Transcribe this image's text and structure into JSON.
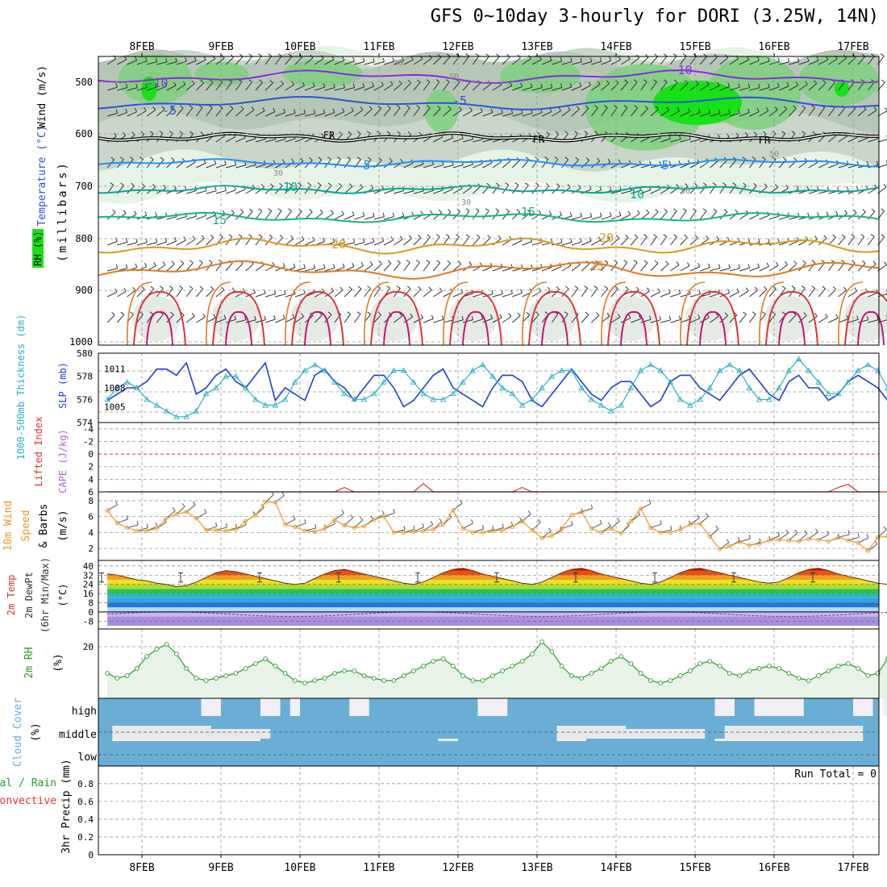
{
  "title": "GFS 0~10day 3-hourly for DORI (3.25W, 14N)",
  "days": [
    "8FEB",
    "9FEB",
    "10FEB",
    "11FEB",
    "12FEB",
    "13FEB",
    "14FEB",
    "15FEB",
    "16FEB",
    "17FEB"
  ],
  "run_total": "Run Total = 0",
  "colors": {
    "rh_light": "#e8f3e8",
    "rh_mid": "#c9d6c9",
    "rh_dark": "#7fd07f",
    "rh_bright": "#16e216",
    "temp_neg10": "#8a2be2",
    "temp_neg5": "#2a55d8",
    "temp_fr": "#000000",
    "temp_5": "#1e90ff",
    "temp_10": "#00a896",
    "temp_15": "#12b48a",
    "temp_20": "#d99a1a",
    "temp_25": "#e07a1a",
    "temp_30": "#dd3333",
    "temp_35": "#cc1177",
    "slp": "#1f3fcf",
    "thickness": "#2ab0c8",
    "lifted": "#dd3333",
    "wind10": "#e89a2a",
    "rh2m": "#2a9a2a",
    "cloud": "#6aaed6"
  },
  "panels": {
    "upper": {
      "ylabel_wind": "Wind (m/s)",
      "ylabel_temp": "Temperature (°C)",
      "ylabel_rh": "RH (%)",
      "ylabel_p": "(millibars)",
      "yticks": [
        "500",
        "600",
        "700",
        "800",
        "900",
        "1000"
      ],
      "contour_labels": [
        "-10",
        "-5",
        "FR",
        "-5",
        "-10",
        "FR",
        "FR",
        "5",
        "5",
        "10",
        "10",
        "15",
        "15",
        "20",
        "20",
        "25",
        "50",
        "50",
        "30",
        "30",
        "30",
        "50"
      ]
    },
    "slp": {
      "ylabel_left": "1000-500mb Thickness (dm)",
      "ylabel_right": "SLP (mb)",
      "yticks_left": [
        "580",
        "578",
        "576",
        "574"
      ],
      "yticks_right": [
        "1011",
        "1008",
        "1005"
      ]
    },
    "lifted": {
      "ylabel_1": "Lifted Index",
      "ylabel_2": "CAPE (J/kg)",
      "yticks": [
        "-4",
        "-2",
        "0",
        "2",
        "4",
        "6"
      ]
    },
    "wind": {
      "ylabel_1": "10m Wind",
      "ylabel_2": "Speed",
      "ylabel_3": "& Barbs",
      "ylabel_4": "(m/s)",
      "yticks": [
        "8",
        "6",
        "4",
        "2"
      ]
    },
    "temp2m": {
      "ylabel_1": "2m Temp",
      "ylabel_2": "2m DewPt",
      "ylabel_3": "(6hr Min/Max)",
      "ylabel_4": "(°C)",
      "yticks": [
        "40",
        "32",
        "24",
        "16",
        "8",
        "0",
        "-8"
      ]
    },
    "rh2m": {
      "ylabel_1": "2m RH",
      "ylabel_2": "(%)",
      "yticks": [
        "20"
      ]
    },
    "cloud": {
      "ylabel_1": "Cloud Cover",
      "ylabel_2": "(%)",
      "yticks": [
        "high",
        "middle",
        "low"
      ]
    },
    "precip": {
      "ylabel_1": "Total / Rain",
      "ylabel_2": "Convective",
      "ylabel_3": "3hr Precip (mm)",
      "yticks": [
        "0.8",
        "0.6",
        "0.4",
        "0.2",
        "0"
      ]
    }
  },
  "chart_data": [
    {
      "type": "line",
      "title": "GFS 0~10day 3-hourly for DORI (3.25W, 14N)",
      "series": [
        {
          "name": "SLP (mb)",
          "values": [
            1006,
            1007,
            1008,
            1008,
            1009,
            1011,
            1011,
            1010,
            1012,
            1007,
            1008,
            1010,
            1011,
            1009,
            1008,
            1010,
            1012,
            1006,
            1008,
            1007,
            1006,
            1010,
            1011,
            1009,
            1008,
            1006,
            1008,
            1010,
            1010,
            1008,
            1005,
            1006,
            1008,
            1010,
            1011,
            1008,
            1007,
            1006,
            1005,
            1008,
            1010,
            1010,
            1009,
            1006,
            1005,
            1007,
            1009,
            1011,
            1009,
            1007,
            1006,
            1008,
            1009,
            1009,
            1007,
            1005,
            1006,
            1009,
            1010,
            1010,
            1008,
            1007,
            1006,
            1008,
            1010,
            1011,
            1009,
            1007,
            1006,
            1009,
            1010,
            1008,
            1008,
            1006,
            1007,
            1009,
            1010,
            1009,
            1008,
            1006
          ]
        },
        {
          "name": "1000-500mb Thickness (dm)",
          "values": [
            576.0,
            577.0,
            577.5,
            577.0,
            576.0,
            575.5,
            575.0,
            574.5,
            574.5,
            575.0,
            576.5,
            577.0,
            578.0,
            578.0,
            577.0,
            576.0,
            575.5,
            575.5,
            576.0,
            577.5,
            578.5,
            579.0,
            578.5,
            577.5,
            576.5,
            576.0,
            576.0,
            576.5,
            577.5,
            578.5,
            578.5,
            577.5,
            576.5,
            576.0,
            576.0,
            576.5,
            577.5,
            578.5,
            579.0,
            578.0,
            577.0,
            576.5,
            575.5,
            576.0,
            577.0,
            578.0,
            578.5,
            578.5,
            577.0,
            576.0,
            575.5,
            575.0,
            575.5,
            577.0,
            578.5,
            579.0,
            578.5,
            577.5,
            576.0,
            575.5,
            576.0,
            577.0,
            578.5,
            579.0,
            578.5,
            577.0,
            576.0,
            576.0,
            577.0,
            578.5,
            579.5,
            578.5,
            577.5,
            576.5,
            576.5,
            577.5,
            578.5,
            579.0,
            578.5,
            577.0
          ]
        }
      ]
    },
    {
      "type": "line",
      "series": [
        {
          "name": "10m Wind Speed (m/s)",
          "values": [
            6.8,
            5.2,
            4.6,
            4.2,
            4.2,
            4.5,
            5.8,
            6.3,
            6.6,
            5.8,
            4.3,
            4.3,
            4.2,
            4.4,
            5.4,
            6.2,
            7.8,
            7.8,
            5.0,
            4.7,
            4.2,
            4.1,
            4.5,
            5.6,
            4.9,
            4.6,
            4.8,
            5.6,
            6.0,
            4.0,
            4.0,
            4.1,
            4.2,
            4.4,
            5.0,
            6.8,
            4.5,
            4.0,
            4.0,
            4.2,
            4.3,
            4.7,
            5.4,
            4.3,
            3.3,
            3.6,
            4.5,
            6.2,
            6.6,
            4.5,
            4.0,
            4.5,
            3.9,
            5.4,
            7.0,
            4.6,
            4.0,
            4.0,
            4.4,
            5.0,
            5.1,
            3.5,
            1.9,
            2.3,
            2.8,
            2.4,
            2.6,
            3.0,
            3.1,
            3.0,
            2.9,
            3.2,
            3.1,
            2.9,
            3.4,
            3.0,
            2.7,
            1.7,
            3.4,
            3.5
          ]
        }
      ]
    },
    {
      "type": "line",
      "series": [
        {
          "name": "2m RH (%)",
          "values": [
            9,
            7,
            8,
            11,
            16,
            19,
            21,
            17,
            11,
            7,
            6,
            7,
            8,
            9,
            11,
            13,
            15,
            12,
            9,
            6,
            5,
            6,
            7,
            9,
            10,
            10,
            8,
            7,
            6,
            6,
            8,
            10,
            12,
            14,
            15,
            12,
            8,
            6,
            6,
            8,
            10,
            12,
            14,
            17,
            22,
            18,
            12,
            8,
            7,
            9,
            11,
            14,
            16,
            13,
            9,
            6,
            5,
            6,
            8,
            10,
            13,
            14,
            12,
            9,
            8,
            10,
            11,
            12,
            11,
            9,
            7,
            6,
            8,
            10,
            12,
            13,
            11,
            8,
            9,
            15
          ]
        }
      ]
    },
    {
      "type": "area",
      "series": [
        {
          "name": "2m Temp (°C)",
          "values": [
            33,
            32,
            30,
            28,
            27,
            25,
            24,
            22,
            23,
            26,
            30,
            34,
            36,
            35,
            33,
            31,
            29,
            27,
            25,
            24,
            25,
            29,
            33,
            36,
            37,
            35,
            33,
            31,
            29,
            27,
            25,
            24,
            26,
            30,
            34,
            37,
            38,
            36,
            33,
            31,
            29,
            27,
            25,
            24,
            26,
            30,
            34,
            37,
            38,
            36,
            33,
            31,
            29,
            27,
            25,
            24,
            26,
            30,
            34,
            37,
            38,
            36,
            34,
            32,
            30,
            28,
            26,
            25,
            26,
            30,
            34,
            37,
            38,
            36,
            33,
            31,
            29,
            27,
            25,
            24
          ]
        }
      ]
    },
    {
      "type": "line",
      "series": [
        {
          "name": "Lifted Index",
          "values": [
            6,
            6,
            6,
            6,
            6,
            6,
            6,
            6,
            6,
            6,
            6,
            6,
            6,
            6,
            6,
            6,
            6,
            6,
            6,
            6,
            6,
            6,
            6,
            6,
            5.3,
            6,
            6,
            6,
            6,
            6,
            6,
            6,
            4.7,
            6,
            6,
            6,
            6,
            6,
            6,
            6,
            6,
            6,
            5.3,
            6,
            6,
            6,
            6,
            6,
            6,
            6,
            6,
            6,
            6,
            6,
            6,
            6,
            6,
            6,
            6,
            6,
            6,
            6,
            6,
            6,
            6,
            6,
            6,
            6,
            6,
            6,
            6,
            6,
            6,
            6,
            5.3,
            4.8,
            6,
            6,
            6,
            6
          ]
        }
      ]
    },
    {
      "type": "bar",
      "series": [
        {
          "name": "high",
          "values": [
            50,
            50,
            20,
            20,
            20,
            20,
            20,
            20,
            20,
            20,
            20,
            20,
            20,
            20,
            20,
            20,
            20,
            20,
            20,
            20,
            20,
            20,
            20,
            20,
            20,
            20,
            20,
            20,
            20,
            20,
            20,
            20,
            20,
            20,
            20,
            20,
            20,
            20,
            20,
            20,
            20,
            20,
            20,
            20,
            20,
            20,
            20,
            20,
            20,
            20,
            20,
            20,
            20,
            20,
            20,
            20,
            20,
            20,
            20,
            20,
            20,
            20,
            20,
            20,
            20,
            20,
            20,
            20,
            20,
            20,
            20,
            20,
            20,
            20,
            20,
            20,
            20,
            20,
            20,
            20
          ]
        },
        {
          "name": "middle",
          "values": [
            0,
            40,
            40,
            40,
            40,
            40,
            40,
            40,
            40,
            40,
            40,
            40,
            40,
            40,
            40,
            40,
            40,
            40,
            40,
            40,
            40,
            40,
            40,
            40,
            40,
            40,
            40,
            40,
            40,
            40,
            40,
            40,
            40,
            40,
            40,
            40,
            40,
            40,
            40,
            40,
            40,
            40,
            40,
            40,
            40,
            40,
            40,
            40,
            40,
            40,
            40,
            40,
            40,
            40,
            40,
            40,
            40,
            40,
            40,
            40,
            40,
            40,
            40,
            40,
            40,
            40,
            40,
            40,
            40,
            40,
            40,
            40,
            40,
            40,
            40,
            40,
            40,
            40,
            40,
            40
          ]
        },
        {
          "name": "low",
          "values": [
            0,
            0,
            0,
            0,
            0,
            0,
            0,
            0,
            0,
            0,
            0,
            0,
            0,
            0,
            0,
            0,
            0,
            0,
            0,
            0,
            0,
            0,
            0,
            0,
            0,
            0,
            0,
            0,
            0,
            0,
            0,
            0,
            0,
            0,
            0,
            0,
            0,
            0,
            0,
            0,
            0,
            0,
            0,
            0,
            0,
            0,
            0,
            0,
            0,
            0,
            0,
            0,
            0,
            0,
            0,
            0,
            0,
            0,
            0,
            0,
            0,
            0,
            0,
            0,
            0,
            0,
            0,
            0,
            0,
            0,
            0,
            0,
            0,
            0,
            0,
            0,
            0,
            0,
            0,
            0
          ]
        }
      ]
    },
    {
      "type": "bar",
      "series": [
        {
          "name": "3hr Precip (mm)",
          "values": [
            0,
            0,
            0,
            0,
            0,
            0,
            0,
            0,
            0,
            0,
            0,
            0,
            0,
            0,
            0,
            0,
            0,
            0,
            0,
            0,
            0,
            0,
            0,
            0,
            0,
            0,
            0,
            0,
            0,
            0,
            0,
            0,
            0,
            0,
            0,
            0,
            0,
            0,
            0,
            0,
            0,
            0,
            0,
            0,
            0,
            0,
            0,
            0,
            0,
            0,
            0,
            0,
            0,
            0,
            0,
            0,
            0,
            0,
            0,
            0,
            0,
            0,
            0,
            0,
            0,
            0,
            0,
            0,
            0,
            0,
            0,
            0,
            0,
            0,
            0,
            0,
            0,
            0,
            0,
            0
          ]
        }
      ]
    }
  ]
}
